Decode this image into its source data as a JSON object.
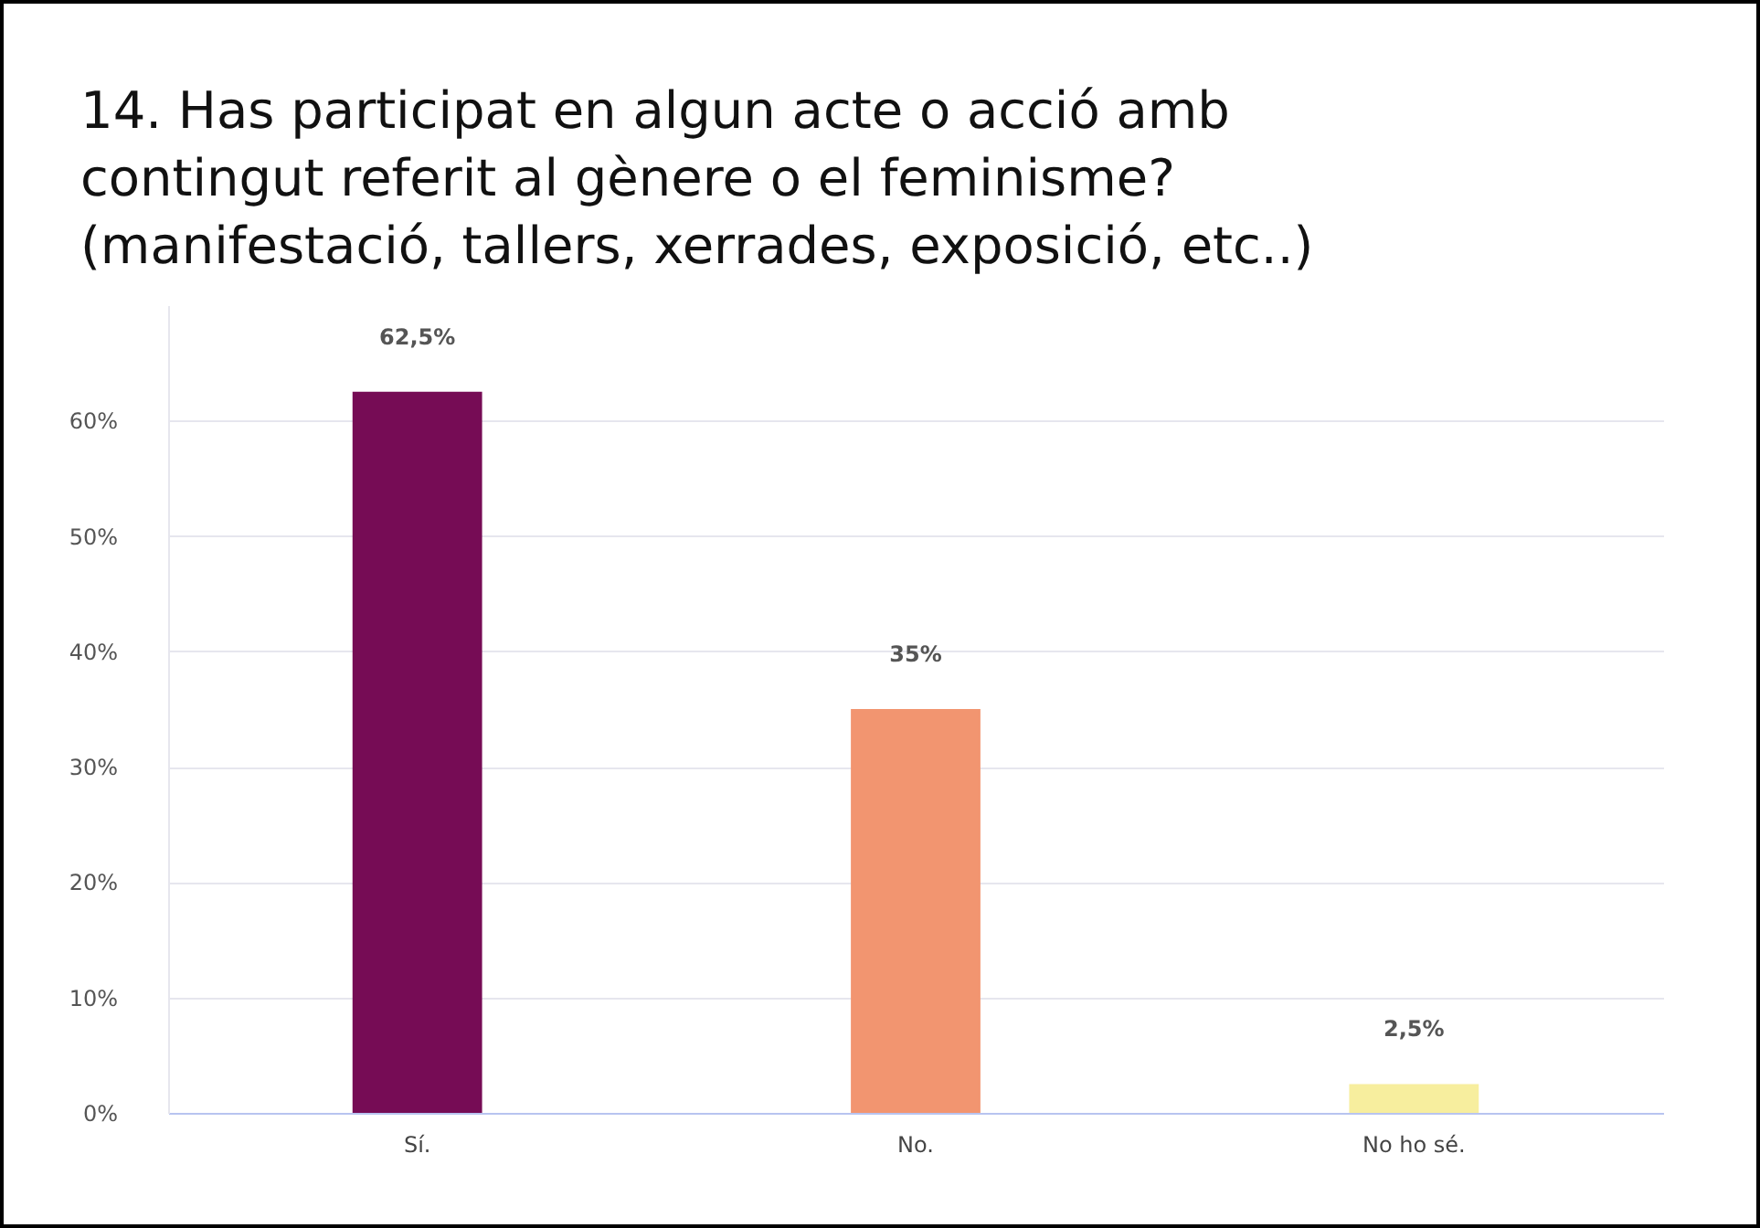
{
  "chart_data": {
    "type": "bar",
    "title": "14. Has participat en algun acte o acció amb contingut referit al gènere o el feminisme? (manifestació, tallers, xerrades, exposició, etc..)",
    "categories": [
      "Sí.",
      "No.",
      "No ho sé."
    ],
    "values": [
      62.5,
      35,
      2.5
    ],
    "colors": [
      "#760c55",
      "#f29570",
      "#f7ee9e"
    ],
    "value_labels": [
      "62,5%",
      "35%",
      "2,5%"
    ],
    "ylim": [
      0,
      70
    ],
    "yticks": [
      {
        "value": 0,
        "label": "0%"
      },
      {
        "value": 10,
        "label": "10%"
      },
      {
        "value": 20,
        "label": "20%"
      },
      {
        "value": 30,
        "label": "30%"
      },
      {
        "value": 40,
        "label": "40%"
      },
      {
        "value": 50,
        "label": "50%"
      },
      {
        "value": 60,
        "label": "60%"
      }
    ],
    "grid": "y"
  }
}
